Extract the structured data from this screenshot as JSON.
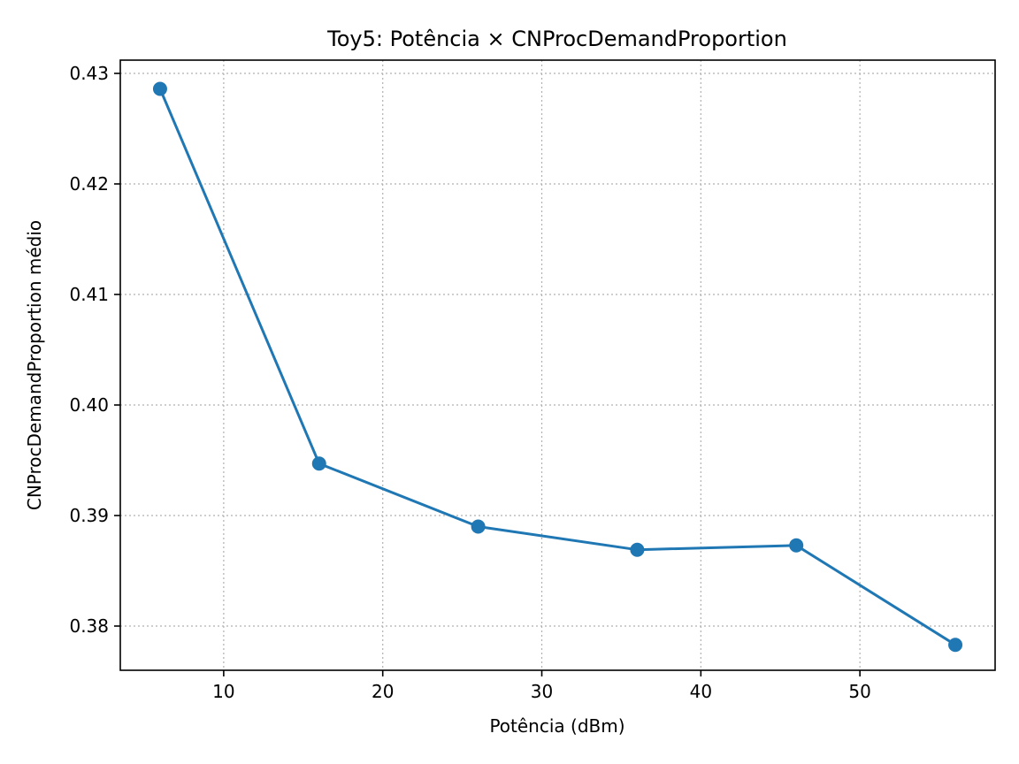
{
  "chart_data": {
    "type": "line",
    "title": "Toy5: Potência × CNProcDemandProportion",
    "xlabel": "Potência (dBm)",
    "ylabel": "CNProcDemandProportion médio",
    "xlim": [
      3.5,
      58.5
    ],
    "ylim": [
      0.376,
      0.4312
    ],
    "xticks": [
      10,
      20,
      30,
      40,
      50
    ],
    "xtick_labels": [
      "10",
      "20",
      "30",
      "40",
      "50"
    ],
    "yticks": [
      0.38,
      0.39,
      0.4,
      0.41,
      0.42,
      0.43
    ],
    "ytick_labels": [
      "0.38",
      "0.39",
      "0.40",
      "0.41",
      "0.42",
      "0.43"
    ],
    "grid": true,
    "series": [
      {
        "color": "#1f77b4",
        "marker": "circle",
        "x": [
          6,
          16,
          26,
          36,
          46,
          56
        ],
        "y": [
          0.4286,
          0.3947,
          0.389,
          0.3869,
          0.3873,
          0.3783
        ]
      }
    ]
  }
}
